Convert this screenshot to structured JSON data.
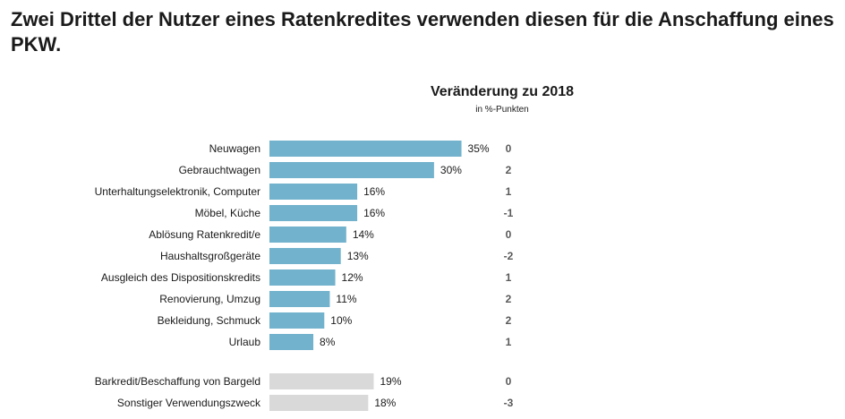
{
  "page": {
    "title": "Zwei Drittel der Nutzer eines Ratenkredites verwenden diesen für die Anschaffung eines PKW."
  },
  "chart_data": {
    "type": "bar",
    "orientation": "horizontal",
    "title": "Zwei Drittel der Nutzer eines Ratenkredites verwenden diesen für die Anschaffung eines PKW.",
    "change_header": "Veränderung zu 2018",
    "change_subheader": "in %-Punkten",
    "unit": "%",
    "xlim": [
      0,
      40
    ],
    "colors": {
      "primary": "#72b2cc",
      "secondary": "#d9d9d9",
      "change_text": "#595959"
    },
    "groups": [
      {
        "name": "primary",
        "categories": [
          "Neuwagen",
          "Gebrauchtwagen",
          "Unterhaltungselektronik, Computer",
          "Möbel, Küche",
          "Ablösung Ratenkredit/e",
          "Haushaltsgroßgeräte",
          "Ausgleich des Dispositionskredits",
          "Renovierung, Umzug",
          "Bekleidung, Schmuck",
          "Urlaub"
        ],
        "values": [
          35,
          30,
          16,
          16,
          14,
          13,
          12,
          11,
          10,
          8
        ],
        "changes": [
          "0",
          "2",
          "1",
          "-1",
          "0",
          "-2",
          "1",
          "2",
          "2",
          "1"
        ]
      },
      {
        "name": "secondary",
        "categories": [
          "Barkredit/Beschaffung von Bargeld",
          "Sonstiger Verwendungszweck"
        ],
        "values": [
          19,
          18
        ],
        "changes": [
          "0",
          "-3"
        ]
      }
    ]
  }
}
